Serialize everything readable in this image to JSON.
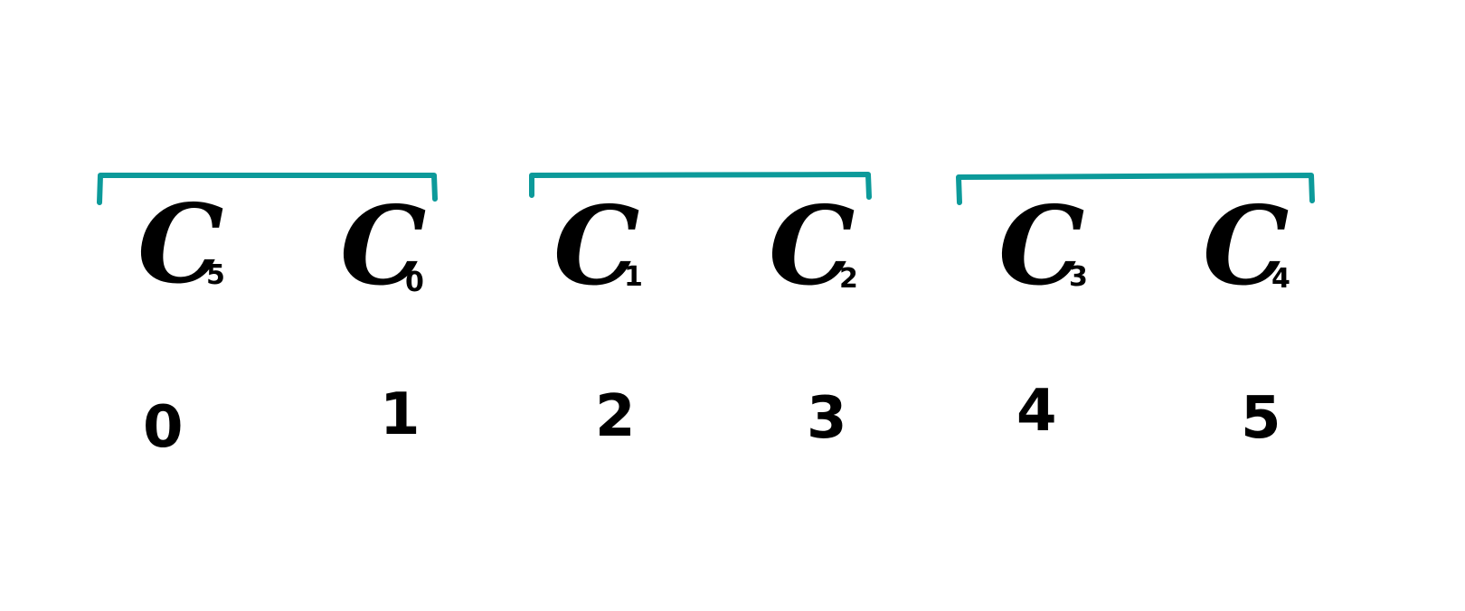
{
  "colors": {
    "bracket": "#0c9a9a",
    "text": "#000000"
  },
  "items": [
    {
      "label": "C",
      "sub": "5",
      "index": "0"
    },
    {
      "label": "C",
      "sub": "0",
      "index": "1"
    },
    {
      "label": "C",
      "sub": "1",
      "index": "2"
    },
    {
      "label": "C",
      "sub": "2",
      "index": "3"
    },
    {
      "label": "C",
      "sub": "3",
      "index": "4"
    },
    {
      "label": "C",
      "sub": "4",
      "index": "5"
    }
  ],
  "groups": [
    {
      "from": 0,
      "to": 1
    },
    {
      "from": 2,
      "to": 3
    },
    {
      "from": 4,
      "to": 5
    }
  ]
}
